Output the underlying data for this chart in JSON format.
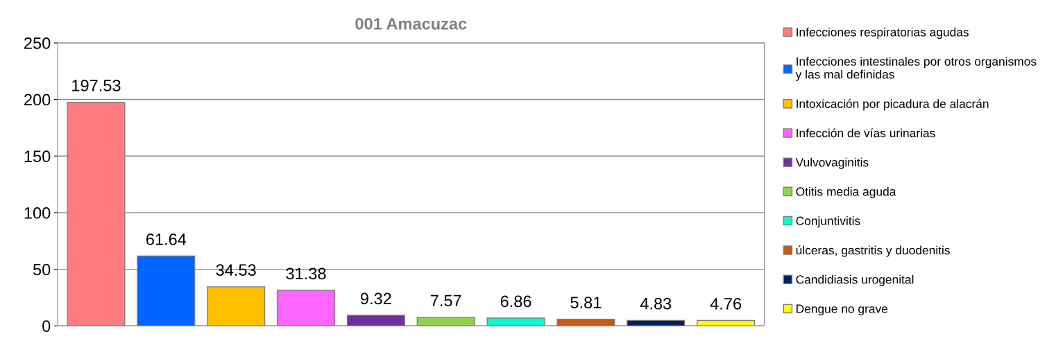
{
  "chart_data": {
    "type": "bar",
    "title": "001 Amacuzac",
    "categories": [
      null,
      null,
      null,
      null,
      null,
      null,
      null,
      null,
      null,
      null
    ],
    "series": [
      {
        "name": "Infecciones respiratorias agudas",
        "color": "#ff7c80",
        "values": [
          197.53,
          null,
          null,
          null,
          null,
          null,
          null,
          null,
          null,
          null
        ]
      },
      {
        "name": "Infecciones intestinales por otros organismos y las mal definidas",
        "color": "#0066ff",
        "values": [
          null,
          61.64,
          null,
          null,
          null,
          null,
          null,
          null,
          null,
          null
        ]
      },
      {
        "name": "Intoxicación por picadura de alacrán",
        "color": "#ffc000",
        "values": [
          null,
          null,
          34.53,
          null,
          null,
          null,
          null,
          null,
          null,
          null
        ]
      },
      {
        "name": "Infección de vías urinarias",
        "color": "#ff66ff",
        "values": [
          null,
          null,
          null,
          31.38,
          null,
          null,
          null,
          null,
          null,
          null
        ]
      },
      {
        "name": "Vulvovaginitis",
        "color": "#7030a0",
        "values": [
          null,
          null,
          null,
          null,
          9.32,
          null,
          null,
          null,
          null,
          null
        ]
      },
      {
        "name": "Otitis media aguda",
        "color": "#92d050",
        "values": [
          null,
          null,
          null,
          null,
          null,
          7.57,
          null,
          null,
          null,
          null
        ]
      },
      {
        "name": "Conjuntivitis",
        "color": "#00ffcc",
        "values": [
          null,
          null,
          null,
          null,
          null,
          null,
          6.86,
          null,
          null,
          null
        ]
      },
      {
        "name": "úlceras, gastritis y duodenitis",
        "color": "#c55a11",
        "values": [
          null,
          null,
          null,
          null,
          null,
          null,
          null,
          5.81,
          null,
          null
        ]
      },
      {
        "name": "Candidiasis urogenital",
        "color": "#002060",
        "values": [
          null,
          null,
          null,
          null,
          null,
          null,
          null,
          null,
          4.83,
          null
        ]
      },
      {
        "name": "Dengue no grave",
        "color": "#ffff00",
        "values": [
          null,
          null,
          null,
          null,
          null,
          null,
          null,
          null,
          null,
          4.76
        ]
      }
    ],
    "ylim": [
      0,
      250
    ],
    "yticks": [
      0,
      50,
      100,
      150,
      200,
      250
    ],
    "grid": "y",
    "legend": "right",
    "data_labels": true
  }
}
